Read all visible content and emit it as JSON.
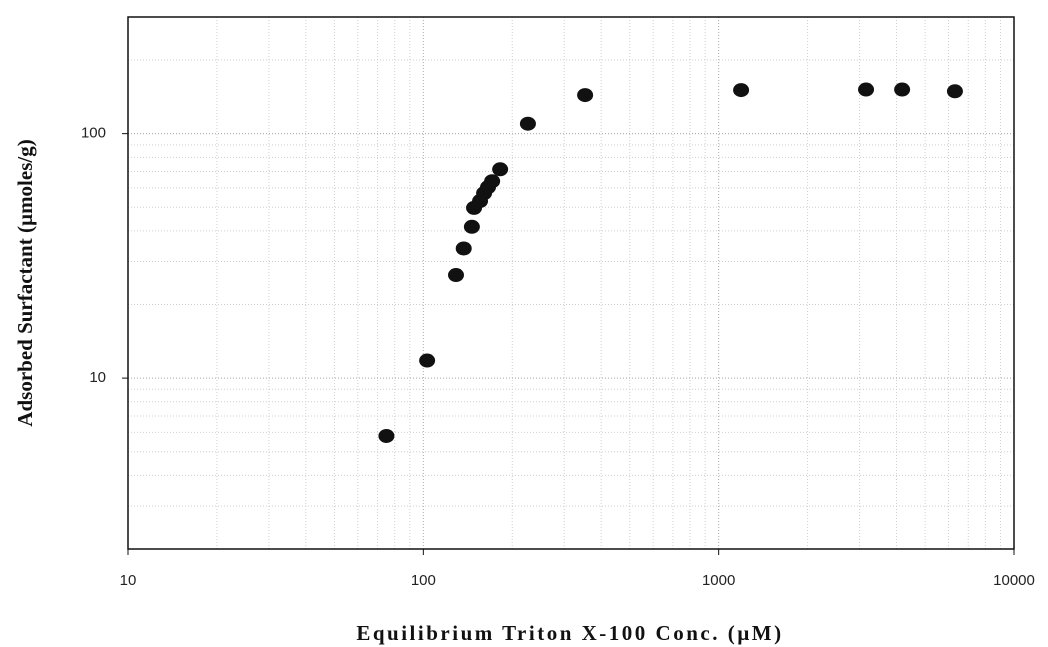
{
  "chart_data": {
    "type": "scatter",
    "x_label": "Equilibrium Triton X-100  Conc. (µM)",
    "y_label": "Adsorbed Surfactant (µmoles/g)",
    "x": [
      75,
      103,
      129,
      137,
      146,
      148.5,
      155.6,
      160.6,
      165.6,
      171,
      182,
      226,
      353,
      1191,
      3155,
      4180,
      6310
    ],
    "series": [
      {
        "color": "#111111",
        "values": [
          5.8,
          11.8,
          26.4,
          33.9,
          41.6,
          49.7,
          53,
          57.1,
          60.4,
          63.9,
          71.5,
          109.8,
          143.8,
          150.7,
          151.5,
          151.5,
          149
        ]
      }
    ],
    "xlim": [
      10,
      10000
    ],
    "ylim": [
      2,
      300
    ],
    "xticks": [
      10,
      100,
      1000,
      10000
    ],
    "yticks": [
      10,
      100
    ],
    "x_log": true,
    "y_log": true,
    "grid": true
  }
}
